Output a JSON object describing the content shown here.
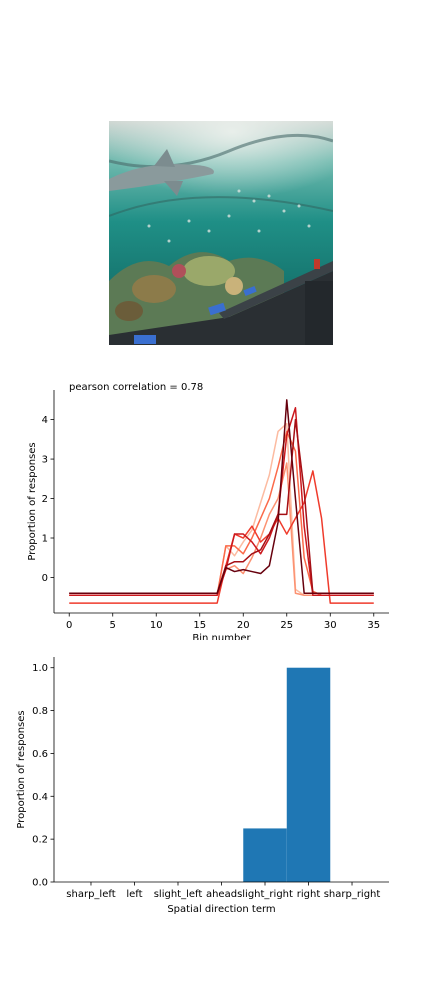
{
  "image": {
    "icon": "aquarium-photo",
    "colors": {
      "water": "#1f8f86",
      "deep": "#0e5e5a",
      "ceiling": "#cfd6d2",
      "rail": "#2a2f33"
    }
  },
  "chart_data": [
    {
      "type": "line",
      "annotation": "pearson correlation = 0.78",
      "xlabel": "Bin number",
      "ylabel": "Proportion of responses",
      "xlim": [
        -1.75,
        36.75
      ],
      "ylim": [
        -0.9,
        4.75
      ],
      "xticks": [
        "0",
        "5",
        "10",
        "15",
        "20",
        "25",
        "30",
        "35"
      ],
      "yticks": [
        "0",
        "1",
        "2",
        "3",
        "4"
      ],
      "grid": false,
      "legend": "none",
      "x": [
        0,
        1,
        2,
        3,
        4,
        5,
        6,
        7,
        8,
        9,
        10,
        11,
        12,
        13,
        14,
        15,
        16,
        17,
        18,
        19,
        20,
        21,
        22,
        23,
        24,
        25,
        26,
        27,
        28,
        29,
        30,
        31,
        32,
        33,
        34,
        35
      ],
      "series": [
        {
          "color": "#fcbba1",
          "values": [
            -0.45,
            -0.45,
            -0.45,
            -0.45,
            -0.45,
            -0.45,
            -0.45,
            -0.45,
            -0.45,
            -0.45,
            -0.45,
            -0.45,
            -0.45,
            -0.45,
            -0.45,
            -0.45,
            -0.45,
            -0.45,
            0.8,
            0.55,
            0.9,
            1.2,
            1.9,
            2.6,
            3.7,
            3.9,
            -0.3,
            -0.45,
            -0.45,
            -0.45,
            -0.45,
            -0.45,
            -0.45,
            -0.45,
            -0.45,
            -0.45
          ]
        },
        {
          "color": "#fc9272",
          "values": [
            -0.45,
            -0.45,
            -0.45,
            -0.45,
            -0.45,
            -0.45,
            -0.45,
            -0.45,
            -0.45,
            -0.45,
            -0.45,
            -0.45,
            -0.45,
            -0.45,
            -0.45,
            -0.45,
            -0.45,
            -0.45,
            0.2,
            0.3,
            0.1,
            0.5,
            1.0,
            1.6,
            2.0,
            2.9,
            -0.4,
            -0.45,
            -0.45,
            -0.45,
            -0.45,
            -0.45,
            -0.45,
            -0.45,
            -0.45,
            -0.45
          ]
        },
        {
          "color": "#fb6a4a",
          "values": [
            -0.45,
            -0.45,
            -0.45,
            -0.45,
            -0.45,
            -0.45,
            -0.45,
            -0.45,
            -0.45,
            -0.45,
            -0.45,
            -0.45,
            -0.45,
            -0.45,
            -0.45,
            -0.45,
            -0.45,
            -0.45,
            0.8,
            0.8,
            0.6,
            1.0,
            1.5,
            2.0,
            2.8,
            3.7,
            3.2,
            0.5,
            -0.35,
            -0.45,
            -0.45,
            -0.45,
            -0.45,
            -0.45,
            -0.45,
            -0.45
          ]
        },
        {
          "color": "#ef3b2c",
          "values": [
            -0.65,
            -0.65,
            -0.65,
            -0.65,
            -0.65,
            -0.65,
            -0.65,
            -0.65,
            -0.65,
            -0.65,
            -0.65,
            -0.65,
            -0.65,
            -0.65,
            -0.65,
            -0.65,
            -0.65,
            -0.65,
            0.3,
            1.1,
            1.0,
            1.3,
            0.9,
            1.1,
            1.5,
            1.1,
            1.5,
            1.9,
            2.7,
            1.5,
            -0.65,
            -0.65,
            -0.65,
            -0.65,
            -0.65,
            -0.65
          ]
        },
        {
          "color": "#cb181d",
          "values": [
            -0.45,
            -0.45,
            -0.45,
            -0.45,
            -0.45,
            -0.45,
            -0.45,
            -0.45,
            -0.45,
            -0.45,
            -0.45,
            -0.45,
            -0.45,
            -0.45,
            -0.45,
            -0.45,
            -0.45,
            -0.45,
            0.2,
            1.1,
            1.1,
            0.9,
            0.6,
            1.0,
            1.6,
            3.6,
            4.3,
            1.3,
            -0.45,
            -0.45,
            -0.45,
            -0.45,
            -0.45,
            -0.45,
            -0.45,
            -0.45
          ]
        },
        {
          "color": "#a50f15",
          "values": [
            -0.4,
            -0.4,
            -0.4,
            -0.4,
            -0.4,
            -0.4,
            -0.4,
            -0.4,
            -0.4,
            -0.4,
            -0.4,
            -0.4,
            -0.4,
            -0.4,
            -0.4,
            -0.4,
            -0.4,
            -0.4,
            0.3,
            0.4,
            0.4,
            0.6,
            0.7,
            1.1,
            1.6,
            1.6,
            4.0,
            2.2,
            -0.4,
            -0.4,
            -0.4,
            -0.4,
            -0.4,
            -0.4,
            -0.4,
            -0.4
          ]
        },
        {
          "color": "#67000d",
          "values": [
            -0.4,
            -0.4,
            -0.4,
            -0.4,
            -0.4,
            -0.4,
            -0.4,
            -0.4,
            -0.4,
            -0.4,
            -0.4,
            -0.4,
            -0.4,
            -0.4,
            -0.4,
            -0.4,
            -0.4,
            -0.4,
            0.25,
            0.15,
            0.2,
            0.15,
            0.1,
            0.3,
            1.4,
            4.5,
            2.0,
            -0.4,
            -0.4,
            -0.4,
            -0.4,
            -0.4,
            -0.4,
            -0.4,
            -0.4,
            -0.4
          ]
        }
      ]
    },
    {
      "type": "bar",
      "xlabel": "Spatial direction term",
      "ylabel": "Proportion of responses",
      "categories": [
        "sharp_left",
        "left",
        "slight_left",
        "ahead",
        "slight_right",
        "right",
        "sharp_right"
      ],
      "values": [
        0,
        0,
        0,
        0,
        0.25,
        1.0,
        0
      ],
      "ylim": [
        0,
        1.05
      ],
      "yticks": [
        "0.0",
        "0.2",
        "0.4",
        "0.6",
        "0.8",
        "1.0"
      ],
      "color": "#1f77b4",
      "grid": false,
      "legend": "none"
    }
  ]
}
